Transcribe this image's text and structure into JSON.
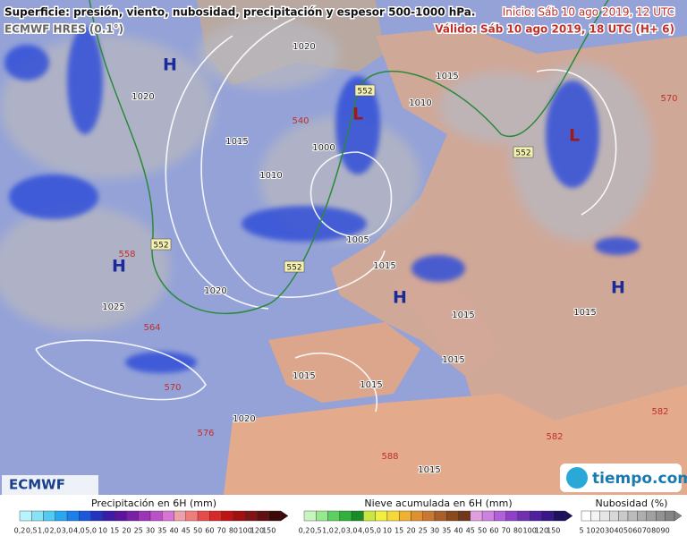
{
  "header": {
    "title": "Superficie: presión, viento, nubosidad, precipitación y espesor 500-1000 hPa.",
    "model": "ECMWF HRES (0.1°)",
    "init": "Inicio: Sáb 10 ago 2019, 12 UTC",
    "valid": "Válido: Sáb 10 ago 2019, 18 UTC (H+ 6)"
  },
  "map": {
    "pressure_centers": [
      "H",
      "H",
      "L",
      "L",
      "H",
      "H"
    ],
    "isobar_labels": [
      "1020",
      "1020",
      "1015",
      "1010",
      "1000",
      "1005",
      "1015",
      "1020",
      "1025",
      "1015",
      "1015",
      "1015",
      "1015",
      "1020",
      "1015",
      "1015",
      "1010",
      "1015"
    ],
    "thickness_labels": [
      "570",
      "576",
      "570",
      "564",
      "558",
      "540",
      "582",
      "582",
      "588"
    ],
    "boxed_labels": [
      "552",
      "552",
      "552",
      "552"
    ]
  },
  "logos": {
    "ecmwf": "ECMWF",
    "tiempo": "tiempo.com"
  },
  "legend": {
    "precip": {
      "title": "Precipitación en 6H (mm)",
      "ticks": [
        "0,2",
        "0,5",
        "1,0",
        "2,0",
        "3,0",
        "4,0",
        "5,0",
        "10",
        "15",
        "20",
        "25",
        "30",
        "35",
        "40",
        "45",
        "50",
        "60",
        "70",
        "80",
        "100",
        "120",
        "150"
      ]
    },
    "snow": {
      "title": "Nieve acumulada en 6H (mm)",
      "ticks": [
        "0,2",
        "0,5",
        "1,0",
        "2,0",
        "3,0",
        "4,0",
        "5,0",
        "10",
        "15",
        "20",
        "25",
        "30",
        "35",
        "40",
        "45",
        "50",
        "60",
        "70",
        "80",
        "100",
        "120",
        "150"
      ]
    },
    "cloud": {
      "title": "Nubosidad (%)",
      "ticks": [
        "5",
        "10",
        "20",
        "30",
        "40",
        "50",
        "60",
        "70",
        "80",
        "90"
      ]
    }
  }
}
